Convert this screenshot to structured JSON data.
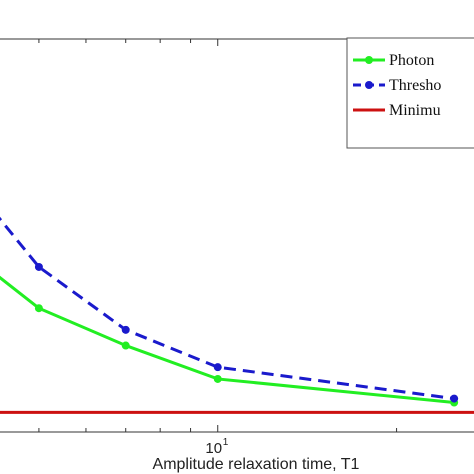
{
  "chart_data": {
    "type": "line",
    "xlabel": "Amplitude relaxation time, T1",
    "xscale": "log",
    "xlim": [
      4.3,
      27
    ],
    "ylim": [
      0,
      1
    ],
    "x_ticks": [
      {
        "base": "10",
        "exp": "1",
        "value": 10
      }
    ],
    "grid": false,
    "legend_position": "top-right",
    "series": [
      {
        "name": "Photon",
        "color": "#22ee22",
        "style": "solid",
        "marker": "circle",
        "x": [
          4,
          5,
          7,
          10,
          25
        ],
        "y": [
          0.43,
          0.315,
          0.22,
          0.135,
          0.075
        ]
      },
      {
        "name": "Thresho",
        "color": "#1a1acc",
        "style": "dashed",
        "marker": "circle",
        "x": [
          4,
          5,
          7,
          10,
          25
        ],
        "y": [
          0.6,
          0.42,
          0.26,
          0.165,
          0.085
        ]
      },
      {
        "name": "Minimu",
        "color": "#cc1111",
        "style": "solid",
        "marker": "none",
        "x": [
          4,
          30
        ],
        "y": [
          0.05,
          0.05
        ]
      }
    ]
  }
}
